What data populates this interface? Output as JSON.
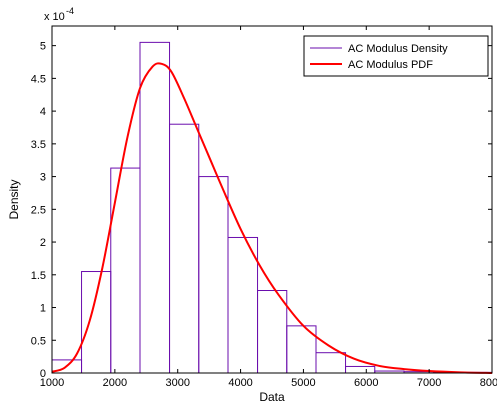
{
  "chart_data": {
    "type": "bar",
    "xlabel": "Data",
    "ylabel": "Density",
    "y_exponent_label": "x 10",
    "y_exponent_power": "-4",
    "y_scale": 0.0001,
    "xlim": [
      1000,
      8000
    ],
    "ylim": [
      0,
      5.3
    ],
    "x_ticks": [
      "1000",
      "2000",
      "3000",
      "4000",
      "5000",
      "6000",
      "7000",
      "8000"
    ],
    "y_ticks": [
      "0",
      "0.5",
      "1",
      "1.5",
      "2",
      "2.5",
      "3",
      "3.5",
      "4",
      "4.5",
      "5"
    ],
    "grid": false,
    "legend_position": "top-right",
    "series": [
      {
        "name": "AC Modulus Density",
        "kind": "histogram",
        "color": "#6a0dad",
        "bin_edges": [
          1000,
          1470,
          1935,
          2400,
          2870,
          3335,
          3800,
          4270,
          4735,
          5200,
          5670,
          6135,
          6600,
          7070,
          7535,
          8000
        ],
        "values": [
          0.2,
          1.55,
          3.13,
          5.05,
          3.8,
          3.0,
          2.07,
          1.26,
          0.72,
          0.31,
          0.1,
          0.03,
          0.02,
          0.01,
          0.01
        ]
      },
      {
        "name": "AC Modulus PDF",
        "kind": "line",
        "color": "#ff0000",
        "x": [
          1000,
          1200,
          1400,
          1600,
          1800,
          2000,
          2200,
          2400,
          2600,
          2750,
          2900,
          3100,
          3300,
          3500,
          3700,
          4000,
          4300,
          4600,
          5000,
          5400,
          5800,
          6200,
          6600,
          7000,
          7500,
          8000
        ],
        "values": [
          0.02,
          0.08,
          0.3,
          0.8,
          1.6,
          2.6,
          3.6,
          4.35,
          4.68,
          4.72,
          4.6,
          4.2,
          3.75,
          3.3,
          2.85,
          2.2,
          1.65,
          1.2,
          0.72,
          0.42,
          0.22,
          0.11,
          0.06,
          0.03,
          0.01,
          0.0
        ]
      }
    ]
  }
}
